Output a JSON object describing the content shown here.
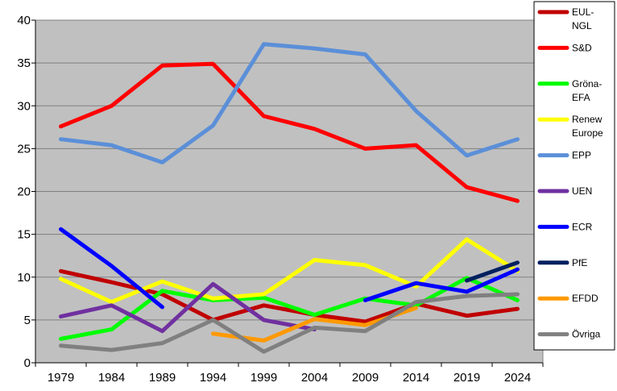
{
  "chart_data": {
    "type": "line",
    "title": "",
    "xlabel": "",
    "ylabel": "",
    "x": [
      "1979",
      "1984",
      "1989",
      "1994",
      "1999",
      "2004",
      "2009",
      "2014",
      "2019",
      "2024"
    ],
    "ylim": [
      0,
      40
    ],
    "yticks": [
      "0",
      "5",
      "10",
      "15",
      "20",
      "25",
      "30",
      "35",
      "40"
    ],
    "grid": true,
    "legend_position": "right",
    "series": [
      {
        "name": "EUL-NGL",
        "legend_lines": [
          "EUL-",
          "NGL"
        ],
        "color": "#c00000",
        "values": [
          10.7,
          9.4,
          8.0,
          5.0,
          6.7,
          5.6,
          4.8,
          6.9,
          5.5,
          6.3
        ]
      },
      {
        "name": "S&D",
        "legend_lines": [
          "S&D"
        ],
        "color": "#ff0000",
        "values": [
          27.6,
          30.0,
          34.7,
          34.9,
          28.8,
          27.3,
          25.0,
          25.4,
          20.5,
          18.9
        ]
      },
      {
        "name": "Gröna-EFA",
        "legend_lines": [
          "Gröna-",
          "EFA"
        ],
        "color": "#00ff00",
        "values": [
          2.8,
          3.9,
          8.4,
          7.3,
          7.6,
          5.6,
          7.5,
          6.7,
          9.9,
          7.3
        ]
      },
      {
        "name": "Renew Europe",
        "legend_lines": [
          "Renew",
          "Europe"
        ],
        "color": "#ffff00",
        "values": [
          9.8,
          7.1,
          9.5,
          7.5,
          8.0,
          12.0,
          11.4,
          8.9,
          14.4,
          10.7
        ]
      },
      {
        "name": "EPP",
        "legend_lines": [
          "EPP"
        ],
        "color": "#5b8fd8",
        "values": [
          26.1,
          25.4,
          23.4,
          27.7,
          37.2,
          36.7,
          36.0,
          29.4,
          24.2,
          26.1
        ]
      },
      {
        "name": "UEN",
        "legend_lines": [
          "UEN"
        ],
        "color": "#7030a0",
        "values": [
          5.4,
          6.7,
          3.7,
          9.2,
          5.0,
          3.9,
          null,
          null,
          null,
          null
        ]
      },
      {
        "name": "ECR",
        "legend_lines": [
          "ECR"
        ],
        "color": "#0000ff",
        "values": [
          15.6,
          11.3,
          6.5,
          null,
          null,
          null,
          7.3,
          9.3,
          8.3,
          10.9
        ]
      },
      {
        "name": "PfE",
        "legend_lines": [
          "PfE"
        ],
        "color": "#002060",
        "values": [
          null,
          null,
          null,
          null,
          null,
          null,
          null,
          null,
          9.6,
          11.7
        ]
      },
      {
        "name": "EFDD",
        "legend_lines": [
          "EFDD"
        ],
        "color": "#ff9900",
        "values": [
          null,
          null,
          null,
          3.4,
          2.6,
          5.1,
          4.4,
          6.4,
          null,
          null
        ]
      },
      {
        "name": "Övriga",
        "legend_lines": [
          "Övriga"
        ],
        "color": "#808080",
        "values": [
          2.0,
          1.5,
          2.3,
          5.0,
          1.3,
          4.1,
          3.7,
          7.1,
          7.8,
          8.0
        ]
      }
    ]
  }
}
